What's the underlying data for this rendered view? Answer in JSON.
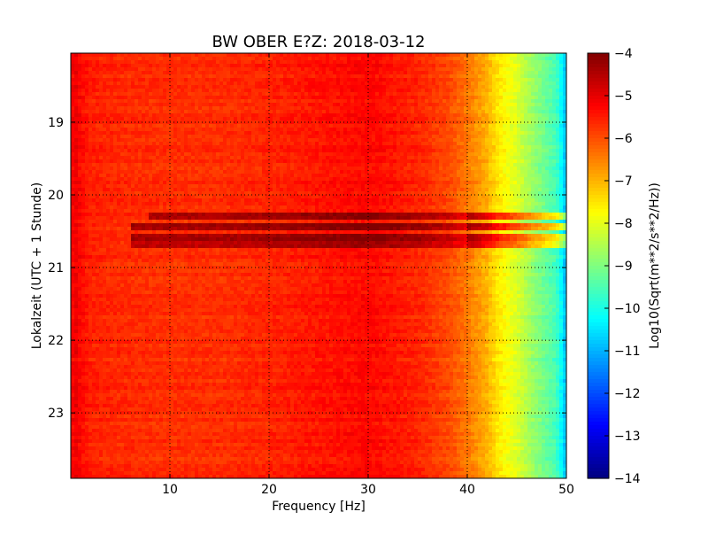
{
  "chart_data": {
    "type": "heatmap",
    "title": "BW OBER E?Z: 2018-03-12",
    "xlabel": "Frequency [Hz]",
    "ylabel": "Lokalzeit (UTC + 1 Stunde)",
    "xlim": [
      0,
      50
    ],
    "ylim": [
      23.9,
      18.05
    ],
    "x_ticks": [
      10,
      20,
      30,
      40,
      50
    ],
    "y_ticks": [
      19,
      20,
      21,
      22,
      23
    ],
    "grid": true,
    "colormap": "jet",
    "colorbar": {
      "label": "Log10(Sqrt(m**2/s**2/Hz))",
      "range": [
        -14,
        -4
      ],
      "ticks": [
        -4,
        -5,
        -6,
        -7,
        -8,
        -9,
        -10,
        -11,
        -12,
        -13,
        -14
      ]
    },
    "spectrum_profile": [
      {
        "freq": 0.0,
        "value": -5.6
      },
      {
        "freq": 0.3,
        "value": -5.0
      },
      {
        "freq": 1.0,
        "value": -5.3
      },
      {
        "freq": 2.0,
        "value": -5.55
      },
      {
        "freq": 5.0,
        "value": -5.65
      },
      {
        "freq": 10.0,
        "value": -5.7
      },
      {
        "freq": 15.0,
        "value": -5.7
      },
      {
        "freq": 20.0,
        "value": -5.6
      },
      {
        "freq": 25.0,
        "value": -5.45
      },
      {
        "freq": 30.0,
        "value": -5.3
      },
      {
        "freq": 35.0,
        "value": -5.6
      },
      {
        "freq": 38.0,
        "value": -5.95
      },
      {
        "freq": 40.0,
        "value": -6.4
      },
      {
        "freq": 42.0,
        "value": -7.0
      },
      {
        "freq": 43.0,
        "value": -7.5
      },
      {
        "freq": 45.0,
        "value": -8.1
      },
      {
        "freq": 47.0,
        "value": -8.9
      },
      {
        "freq": 49.0,
        "value": -9.6
      },
      {
        "freq": 49.6,
        "value": -10.4
      },
      {
        "freq": 50.0,
        "value": -11.0
      }
    ],
    "events": [
      {
        "time": 20.3,
        "f_start": 8,
        "f_end": 50,
        "amplitude": 1.2
      },
      {
        "time": 20.45,
        "f_start": 6,
        "f_end": 50,
        "amplitude": 1.4
      },
      {
        "time": 20.6,
        "f_start": 6,
        "f_end": 50,
        "amplitude": 1.3
      },
      {
        "time": 20.7,
        "f_start": 6,
        "f_end": 50,
        "amplitude": 1.1
      }
    ]
  }
}
